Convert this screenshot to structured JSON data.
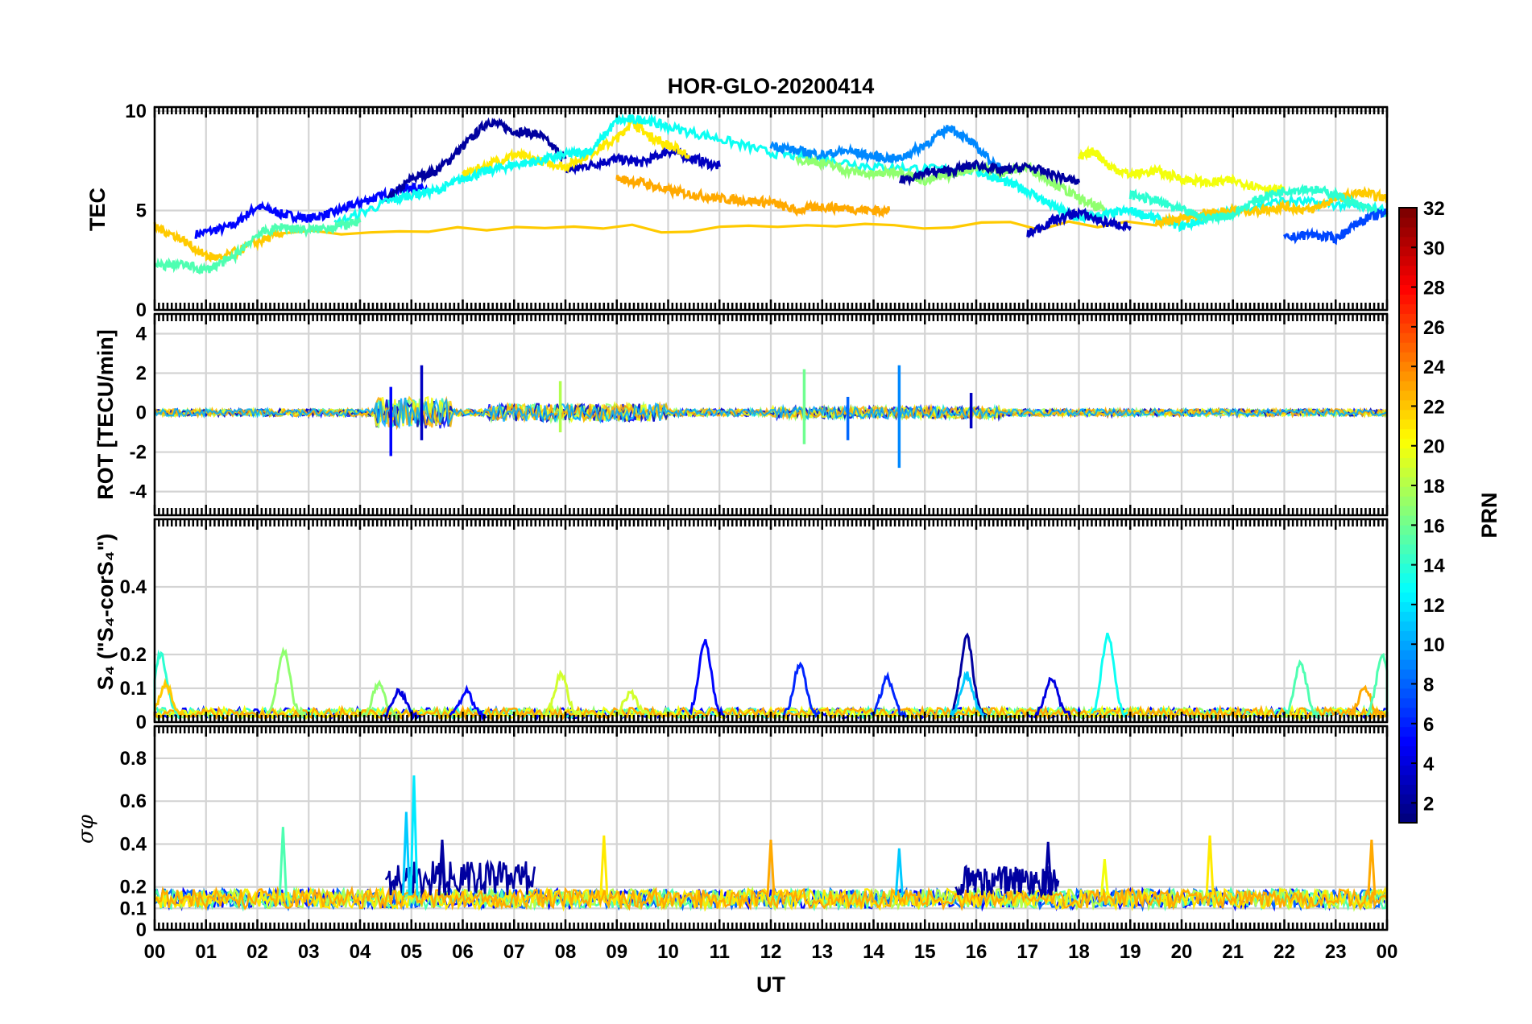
{
  "chart_data": {
    "type": "line",
    "title": "HOR-GLO-20200414",
    "xlabel": "UT",
    "x_ticks": [
      "00",
      "01",
      "02",
      "03",
      "04",
      "05",
      "06",
      "07",
      "08",
      "09",
      "10",
      "11",
      "12",
      "13",
      "14",
      "15",
      "16",
      "17",
      "18",
      "19",
      "20",
      "21",
      "22",
      "23",
      "00"
    ],
    "xlim": [
      0,
      24
    ],
    "grid": true,
    "colorbar": {
      "label": "PRN",
      "range": [
        1,
        32
      ],
      "ticks": [
        "2",
        "4",
        "6",
        "8",
        "10",
        "12",
        "14",
        "16",
        "18",
        "20",
        "22",
        "24",
        "26",
        "28",
        "30",
        "32"
      ],
      "colormap": "jet"
    },
    "panels": [
      {
        "ylabel": "TEC",
        "ylim": [
          0,
          10.2
        ],
        "yticks": [
          "0",
          "5",
          "10"
        ],
        "series": [
          {
            "prn": 5,
            "x": [
              0.8,
              1.5,
              2.0,
              2.5,
              3.0,
              3.5,
              4.0,
              4.5,
              5.0,
              5.3
            ],
            "y": [
              3.8,
              4.2,
              5.2,
              4.8,
              4.6,
              4.9,
              5.4,
              5.8,
              6.2,
              6.0
            ]
          },
          {
            "prn": 2,
            "x": [
              4.5,
              5.0,
              5.5,
              6.0,
              6.5,
              7.0,
              7.5,
              8.0
            ],
            "y": [
              5.4,
              6.6,
              7.0,
              8.2,
              9.5,
              9.0,
              8.8,
              7.6
            ]
          },
          {
            "prn": 3,
            "x": [
              8.0,
              8.5,
              9.0,
              9.5,
              10.0,
              10.5,
              11.0
            ],
            "y": [
              7.0,
              7.3,
              7.6,
              7.4,
              8.0,
              7.6,
              7.2
            ]
          },
          {
            "prn": 21,
            "x": [
              6.0,
              6.5,
              7.0,
              7.5,
              8.0,
              8.5,
              9.0,
              9.3,
              9.6,
              10.0,
              10.4
            ],
            "y": [
              6.8,
              7.3,
              7.8,
              7.5,
              7.2,
              7.9,
              8.6,
              9.5,
              8.8,
              8.3,
              7.8
            ]
          },
          {
            "prn": 13,
            "x": [
              3.5,
              4.5,
              5.0,
              5.5,
              6.0,
              6.5,
              7.0,
              7.5,
              8.0,
              8.5,
              9.0,
              9.5,
              10.0,
              11.0,
              12.0,
              13.0,
              14.0,
              15.0,
              16.0,
              16.5,
              17.0,
              17.5,
              18.0,
              18.5,
              19.0,
              19.5,
              20.0,
              20.5,
              21.0,
              22.0,
              23.0,
              24.0
            ],
            "y": [
              4.3,
              5.4,
              5.8,
              6.0,
              6.6,
              7.0,
              7.3,
              7.5,
              7.8,
              8.0,
              9.5,
              9.6,
              9.2,
              8.6,
              7.9,
              7.6,
              7.2,
              7.1,
              7.0,
              6.5,
              6.0,
              5.2,
              4.6,
              4.8,
              5.0,
              4.6,
              4.2,
              4.6,
              5.0,
              5.5,
              5.3,
              5.0
            ]
          },
          {
            "prn": 23,
            "x": [
              9.0,
              9.5,
              10.0,
              10.5,
              11.0,
              11.5,
              12.0,
              12.5,
              13.0,
              13.5,
              14.0,
              14.3
            ],
            "y": [
              6.6,
              6.4,
              6.0,
              5.8,
              5.6,
              5.5,
              5.4,
              5.0,
              5.2,
              5.1,
              5.0,
              5.0
            ]
          },
          {
            "prn": 22,
            "x": [
              0.0,
              0.5,
              1.0,
              1.3,
              2.0,
              2.5,
              19.5,
              20.0,
              20.5,
              21.0,
              21.5,
              22.0,
              22.5,
              23.0,
              23.5,
              24.0
            ],
            "y": [
              4.2,
              3.6,
              2.7,
              2.6,
              3.4,
              3.9,
              4.3,
              4.6,
              4.9,
              5.0,
              5.0,
              5.2,
              5.0,
              5.6,
              5.9,
              5.6
            ]
          },
          {
            "prn": 9,
            "x": [
              12.0,
              12.5,
              13.0,
              13.5,
              14.0,
              14.5,
              15.0,
              15.5,
              16.0,
              16.5
            ],
            "y": [
              8.3,
              8.0,
              7.8,
              8.0,
              7.7,
              7.6,
              8.3,
              9.2,
              8.2,
              7.0
            ]
          },
          {
            "prn": 17,
            "x": [
              12.5,
              13.0,
              13.5,
              14.0,
              14.5,
              15.0,
              15.5,
              16.0,
              16.5,
              17.0,
              17.5,
              18.0,
              18.5
            ],
            "y": [
              7.6,
              7.4,
              7.0,
              6.8,
              7.0,
              6.5,
              6.8,
              7.2,
              6.9,
              7.2,
              6.4,
              5.6,
              5.0
            ]
          },
          {
            "prn": 2,
            "x": [
              14.5,
              15.0,
              15.5,
              16.0,
              16.5,
              17.0,
              17.5,
              18.0
            ],
            "y": [
              6.5,
              6.9,
              7.0,
              7.3,
              7.0,
              7.2,
              6.8,
              6.4
            ]
          },
          {
            "prn": 3,
            "x": [
              17.0,
              17.5,
              18.0,
              18.5,
              19.0
            ],
            "y": [
              3.8,
              4.5,
              4.9,
              4.4,
              4.2
            ]
          },
          {
            "prn": 20,
            "x": [
              18.0,
              18.3,
              18.6,
              19.0,
              19.5,
              20.0,
              20.5,
              21.0,
              21.5,
              22.0
            ],
            "y": [
              7.6,
              8.0,
              7.2,
              6.8,
              7.0,
              6.6,
              6.4,
              6.5,
              6.2,
              6.0
            ]
          },
          {
            "prn": 14,
            "x": [
              19.0,
              19.5,
              20.0,
              20.5,
              21.0,
              21.5,
              22.0,
              22.5,
              23.0,
              23.5,
              24.0
            ],
            "y": [
              5.8,
              5.5,
              5.0,
              4.6,
              4.8,
              5.6,
              6.0,
              6.1,
              5.8,
              5.2,
              4.8
            ]
          },
          {
            "prn": 15,
            "x": [
              0.0,
              0.5,
              1.0,
              1.5,
              2.0,
              2.5,
              3.0,
              3.5,
              4.0
            ],
            "y": [
              2.2,
              2.3,
              2.0,
              2.6,
              3.8,
              4.2,
              4.0,
              4.2,
              4.4
            ]
          },
          {
            "prn": 7,
            "x": [
              22.0,
              22.5,
              23.0,
              23.5,
              24.0
            ],
            "y": [
              3.6,
              3.8,
              3.6,
              4.5,
              4.9
            ]
          }
        ]
      },
      {
        "ylabel": "ROT [TECU/min]",
        "ylim": [
          -5.2,
          5.0
        ],
        "yticks": [
          "-4",
          "-2",
          "0",
          "2",
          "4"
        ],
        "spikes": [
          {
            "prn": 5,
            "x": 4.6,
            "ymin": -2.2,
            "ymax": 1.3
          },
          {
            "prn": 3,
            "x": 5.2,
            "ymin": -1.4,
            "ymax": 2.4
          },
          {
            "prn": 18,
            "x": 7.9,
            "ymin": -1.0,
            "ymax": 1.6
          },
          {
            "prn": 16,
            "x": 12.65,
            "ymin": -1.6,
            "ymax": 2.2
          },
          {
            "prn": 8,
            "x": 13.5,
            "ymin": -1.4,
            "ymax": 0.8
          },
          {
            "prn": 9,
            "x": 14.5,
            "ymin": -2.8,
            "ymax": 2.4
          },
          {
            "prn": 3,
            "x": 15.9,
            "ymin": -0.8,
            "ymax": 1.0
          }
        ]
      },
      {
        "ylabel": "S₄ (\"S₄-corS₄\")",
        "ylim": [
          0,
          0.6
        ],
        "yticks": [
          "0",
          "0.1",
          "0.2",
          "0.4"
        ],
        "bumps": [
          {
            "prn": 14,
            "x": 0.15,
            "peak": 0.2
          },
          {
            "prn": 22,
            "x": 0.25,
            "peak": 0.11
          },
          {
            "prn": 17,
            "x": 2.55,
            "peak": 0.21
          },
          {
            "prn": 17,
            "x": 4.4,
            "peak": 0.11
          },
          {
            "prn": 4,
            "x": 4.8,
            "peak": 0.09
          },
          {
            "prn": 5,
            "x": 6.1,
            "peak": 0.09
          },
          {
            "prn": 19,
            "x": 7.95,
            "peak": 0.14
          },
          {
            "prn": 19,
            "x": 9.3,
            "peak": 0.09
          },
          {
            "prn": 5,
            "x": 10.75,
            "peak": 0.24
          },
          {
            "prn": 6,
            "x": 12.6,
            "peak": 0.17
          },
          {
            "prn": 6,
            "x": 14.3,
            "peak": 0.13
          },
          {
            "prn": 2,
            "x": 15.85,
            "peak": 0.25
          },
          {
            "prn": 11,
            "x": 15.85,
            "peak": 0.14
          },
          {
            "prn": 4,
            "x": 17.5,
            "peak": 0.13
          },
          {
            "prn": 13,
            "x": 18.6,
            "peak": 0.26
          },
          {
            "prn": 15,
            "x": 22.35,
            "peak": 0.17
          },
          {
            "prn": 23,
            "x": 23.6,
            "peak": 0.1
          },
          {
            "prn": 15,
            "x": 23.95,
            "peak": 0.2
          }
        ]
      },
      {
        "ylabel": "σφ",
        "ylim": [
          0,
          0.95
        ],
        "yticks": [
          "0",
          "0.1",
          "0.2",
          "0.4",
          "0.6",
          "0.8"
        ],
        "spikes": [
          {
            "prn": 15,
            "x": 2.5,
            "peak": 0.48
          },
          {
            "prn": 11,
            "x": 4.9,
            "peak": 0.55
          },
          {
            "prn": 12,
            "x": 5.05,
            "peak": 0.72
          },
          {
            "prn": 2,
            "x": 5.6,
            "peak": 0.42
          },
          {
            "prn": 21,
            "x": 8.75,
            "peak": 0.44
          },
          {
            "prn": 23,
            "x": 12.0,
            "peak": 0.42
          },
          {
            "prn": 11,
            "x": 14.5,
            "peak": 0.38
          },
          {
            "prn": 2,
            "x": 17.4,
            "peak": 0.41
          },
          {
            "prn": 20,
            "x": 18.5,
            "peak": 0.33
          },
          {
            "prn": 21,
            "x": 20.55,
            "peak": 0.44
          },
          {
            "prn": 23,
            "x": 23.7,
            "peak": 0.42
          }
        ],
        "plateaus": [
          {
            "prn": 2,
            "x0": 4.5,
            "x1": 7.4,
            "level": 0.26
          },
          {
            "prn": 2,
            "x0": 15.6,
            "x1": 17.6,
            "level": 0.24
          }
        ]
      }
    ]
  }
}
